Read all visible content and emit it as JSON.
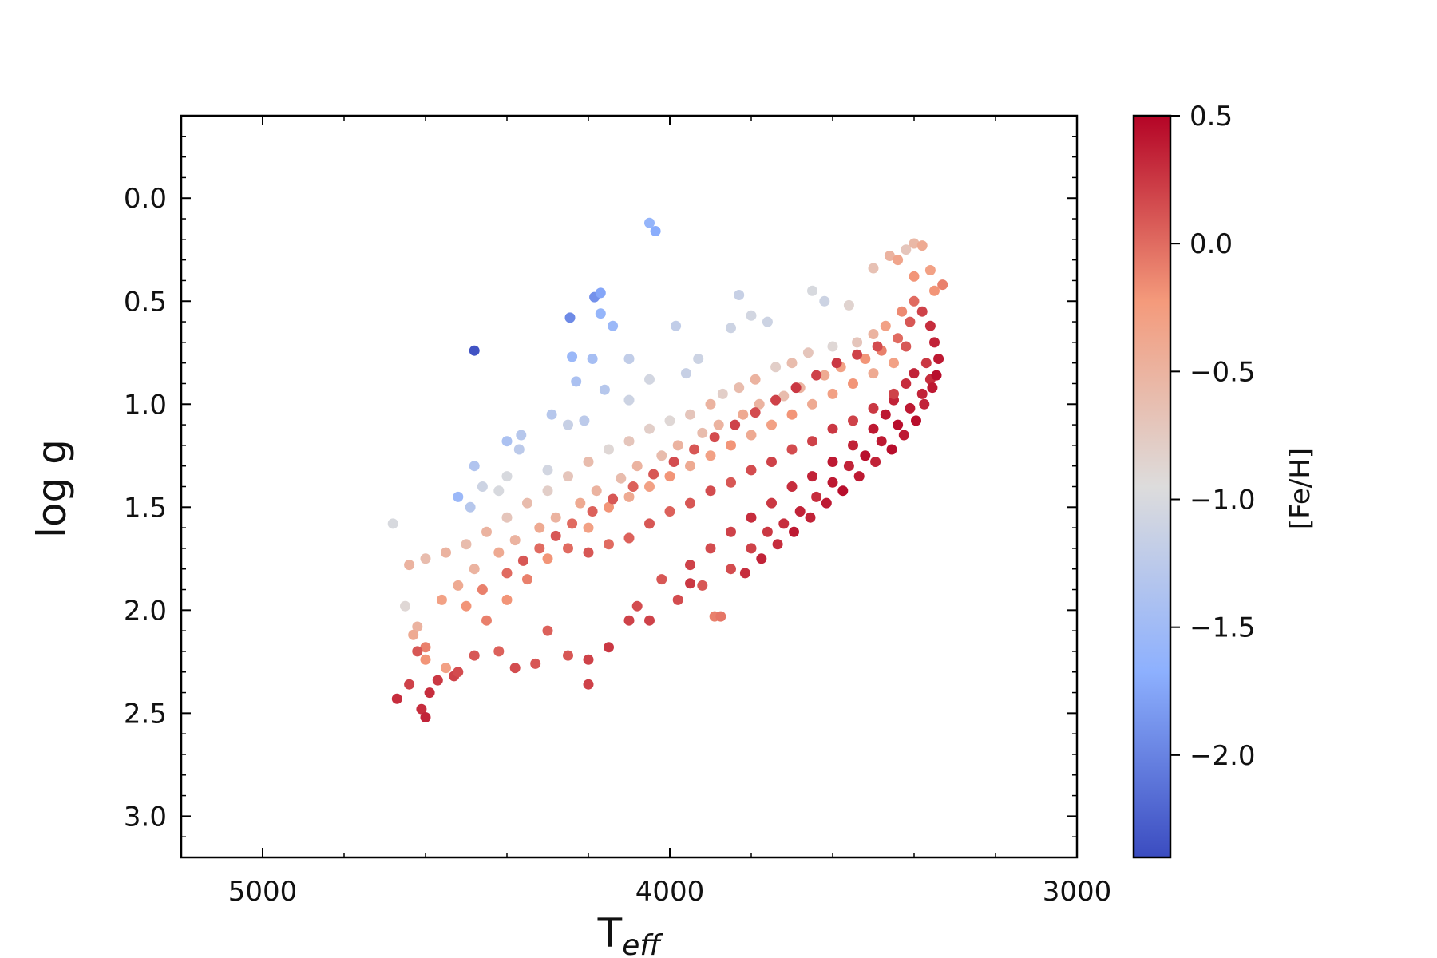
{
  "chart_data": {
    "type": "scatter",
    "title": "",
    "xlabel": "T",
    "xlabel_subscript": "eff",
    "ylabel": "log g",
    "xlim": [
      5200,
      3000
    ],
    "ylim": [
      3.2,
      -0.4
    ],
    "x_reversed": true,
    "y_reversed": true,
    "xticks": [
      5000,
      4000,
      3000
    ],
    "xtick_labels": [
      "5000",
      "4000",
      "3000"
    ],
    "yticks": [
      0.0,
      0.5,
      1.0,
      1.5,
      2.0,
      2.5,
      3.0
    ],
    "ytick_labels": [
      "0.0",
      "0.5",
      "1.0",
      "1.5",
      "2.0",
      "2.5",
      "3.0"
    ],
    "grid": false,
    "colorbar": {
      "label": "[Fe/H]",
      "colormap": "coolwarm",
      "range": [
        -2.4,
        0.5
      ],
      "ticks": [
        0.5,
        0.0,
        -0.5,
        -1.0,
        -1.5,
        -2.0
      ],
      "tick_labels": [
        "0.5",
        "0.0",
        "−0.5",
        "−1.0",
        "−1.5",
        "−2.0"
      ],
      "colors": [
        "#3b4cc0",
        "#8db0fe",
        "#dddcdc",
        "#f49a7b",
        "#b40426"
      ]
    },
    "points": [
      [
        4050,
        0.12,
        -1.6
      ],
      [
        4035,
        0.16,
        -1.7
      ],
      [
        4185,
        0.48,
        -1.9
      ],
      [
        4170,
        0.46,
        -1.75
      ],
      [
        4245,
        0.58,
        -1.95
      ],
      [
        4170,
        0.56,
        -1.6
      ],
      [
        4140,
        0.62,
        -1.55
      ],
      [
        4480,
        0.74,
        -2.35
      ],
      [
        4240,
        0.77,
        -1.55
      ],
      [
        4190,
        0.78,
        -1.45
      ],
      [
        3985,
        0.62,
        -1.2
      ],
      [
        3830,
        0.47,
        -1.15
      ],
      [
        3850,
        0.63,
        -1.1
      ],
      [
        4100,
        0.78,
        -1.2
      ],
      [
        4230,
        0.89,
        -1.4
      ],
      [
        4160,
        0.93,
        -1.3
      ],
      [
        4290,
        1.05,
        -1.3
      ],
      [
        4210,
        1.08,
        -1.25
      ],
      [
        4365,
        1.15,
        -1.3
      ],
      [
        4400,
        1.18,
        -1.4
      ],
      [
        4370,
        1.22,
        -1.25
      ],
      [
        4480,
        1.3,
        -1.35
      ],
      [
        4520,
        1.45,
        -1.55
      ],
      [
        4490,
        1.5,
        -1.3
      ],
      [
        4680,
        1.58,
        -1.0
      ],
      [
        4650,
        1.98,
        -0.9
      ],
      [
        4460,
        1.4,
        -1.1
      ],
      [
        4420,
        1.42,
        -1.0
      ],
      [
        4400,
        1.35,
        -1.0
      ],
      [
        4300,
        1.32,
        -1.05
      ],
      [
        4250,
        1.1,
        -1.15
      ],
      [
        4100,
        0.98,
        -1.1
      ],
      [
        4050,
        0.88,
        -1.05
      ],
      [
        3960,
        0.85,
        -1.15
      ],
      [
        3930,
        0.78,
        -1.1
      ],
      [
        3800,
        0.57,
        -1.05
      ],
      [
        3760,
        0.6,
        -1.1
      ],
      [
        3650,
        0.45,
        -1.0
      ],
      [
        3620,
        0.5,
        -1.1
      ],
      [
        3560,
        0.52,
        -0.85
      ],
      [
        3500,
        0.34,
        -0.65
      ],
      [
        3460,
        0.28,
        -0.5
      ],
      [
        3400,
        0.22,
        -0.55
      ],
      [
        3380,
        0.23,
        -0.4
      ],
      [
        3420,
        0.25,
        -0.7
      ],
      [
        3440,
        0.3,
        -0.35
      ],
      [
        3400,
        0.38,
        -0.2
      ],
      [
        3360,
        0.35,
        -0.3
      ],
      [
        3330,
        0.42,
        -0.1
      ],
      [
        3350,
        0.45,
        -0.2
      ],
      [
        3400,
        0.5,
        0.0
      ],
      [
        3430,
        0.55,
        -0.15
      ],
      [
        3470,
        0.62,
        -0.3
      ],
      [
        3500,
        0.66,
        -0.5
      ],
      [
        3540,
        0.7,
        -0.7
      ],
      [
        3600,
        0.72,
        -0.9
      ],
      [
        3660,
        0.75,
        -0.7
      ],
      [
        3700,
        0.8,
        -0.6
      ],
      [
        3740,
        0.82,
        -0.8
      ],
      [
        3790,
        0.88,
        -0.5
      ],
      [
        3830,
        0.92,
        -0.6
      ],
      [
        3870,
        0.95,
        -0.8
      ],
      [
        3900,
        1.0,
        -0.5
      ],
      [
        3950,
        1.05,
        -0.7
      ],
      [
        4000,
        1.08,
        -0.9
      ],
      [
        4050,
        1.12,
        -0.8
      ],
      [
        4100,
        1.18,
        -0.7
      ],
      [
        4150,
        1.22,
        -0.9
      ],
      [
        4200,
        1.28,
        -0.6
      ],
      [
        4250,
        1.35,
        -0.7
      ],
      [
        4300,
        1.42,
        -0.8
      ],
      [
        4350,
        1.48,
        -0.6
      ],
      [
        4400,
        1.55,
        -0.7
      ],
      [
        4450,
        1.62,
        -0.5
      ],
      [
        4500,
        1.68,
        -0.6
      ],
      [
        4550,
        1.72,
        -0.5
      ],
      [
        4600,
        1.75,
        -0.6
      ],
      [
        4640,
        1.78,
        -0.5
      ],
      [
        4620,
        2.08,
        -0.5
      ],
      [
        4630,
        2.12,
        -0.4
      ],
      [
        4600,
        2.18,
        -0.1
      ],
      [
        4620,
        2.2,
        0.1
      ],
      [
        4600,
        2.24,
        -0.2
      ],
      [
        4550,
        2.28,
        -0.3
      ],
      [
        4530,
        2.32,
        0.2
      ],
      [
        4570,
        2.34,
        0.25
      ],
      [
        4640,
        2.36,
        0.2
      ],
      [
        4670,
        2.43,
        0.3
      ],
      [
        4590,
        2.4,
        0.3
      ],
      [
        4610,
        2.48,
        0.3
      ],
      [
        4600,
        2.52,
        0.35
      ],
      [
        4520,
        2.3,
        0.15
      ],
      [
        4480,
        2.22,
        0.1
      ],
      [
        4420,
        2.2,
        0.05
      ],
      [
        4380,
        2.28,
        0.15
      ],
      [
        4330,
        2.26,
        0.1
      ],
      [
        4300,
        2.1,
        0.05
      ],
      [
        4250,
        2.22,
        0.1
      ],
      [
        4200,
        2.24,
        0.2
      ],
      [
        4150,
        2.18,
        0.25
      ],
      [
        4100,
        2.05,
        0.2
      ],
      [
        4080,
        1.98,
        0.15
      ],
      [
        4020,
        1.85,
        0.1
      ],
      [
        3950,
        1.78,
        0.2
      ],
      [
        3900,
        1.7,
        0.15
      ],
      [
        3850,
        1.62,
        0.2
      ],
      [
        3800,
        1.55,
        0.3
      ],
      [
        3750,
        1.48,
        0.25
      ],
      [
        3700,
        1.4,
        0.3
      ],
      [
        3650,
        1.35,
        0.35
      ],
      [
        3600,
        1.28,
        0.4
      ],
      [
        3550,
        1.2,
        0.35
      ],
      [
        3500,
        1.12,
        0.4
      ],
      [
        3470,
        1.05,
        0.4
      ],
      [
        3450,
        0.98,
        0.35
      ],
      [
        3420,
        0.9,
        0.3
      ],
      [
        3400,
        0.85,
        0.35
      ],
      [
        3370,
        0.8,
        0.25
      ],
      [
        3360,
        0.88,
        0.3
      ],
      [
        3380,
        0.95,
        0.35
      ],
      [
        3410,
        1.02,
        0.4
      ],
      [
        3440,
        1.1,
        0.45
      ],
      [
        3480,
        1.18,
        0.4
      ],
      [
        3520,
        1.25,
        0.45
      ],
      [
        3560,
        1.3,
        0.35
      ],
      [
        3600,
        1.38,
        0.4
      ],
      [
        3640,
        1.45,
        0.3
      ],
      [
        3680,
        1.52,
        0.35
      ],
      [
        3720,
        1.58,
        0.3
      ],
      [
        3760,
        1.62,
        0.25
      ],
      [
        3800,
        1.7,
        0.2
      ],
      [
        3850,
        1.8,
        0.15
      ],
      [
        3920,
        1.88,
        0.1
      ],
      [
        3980,
        1.95,
        0.15
      ],
      [
        3890,
        2.03,
        -0.1
      ],
      [
        3875,
        2.03,
        -0.05
      ],
      [
        4200,
        2.36,
        0.2
      ],
      [
        4050,
        2.05,
        0.2
      ],
      [
        3950,
        1.87,
        0.25
      ],
      [
        4200,
        1.6,
        -0.3
      ],
      [
        4150,
        1.5,
        -0.2
      ],
      [
        4100,
        1.45,
        -0.4
      ],
      [
        4050,
        1.4,
        -0.3
      ],
      [
        4000,
        1.35,
        -0.2
      ],
      [
        3950,
        1.3,
        -0.4
      ],
      [
        3900,
        1.25,
        -0.3
      ],
      [
        3850,
        1.2,
        -0.2
      ],
      [
        3800,
        1.15,
        -0.4
      ],
      [
        3750,
        1.1,
        -0.3
      ],
      [
        3700,
        1.05,
        -0.2
      ],
      [
        3650,
        1.0,
        -0.4
      ],
      [
        3600,
        0.95,
        -0.3
      ],
      [
        3550,
        0.9,
        -0.2
      ],
      [
        3500,
        0.85,
        -0.4
      ],
      [
        3450,
        0.8,
        -0.3
      ],
      [
        4300,
        1.75,
        -0.2
      ],
      [
        4350,
        1.85,
        -0.1
      ],
      [
        4400,
        1.95,
        -0.2
      ],
      [
        4450,
        2.05,
        -0.1
      ],
      [
        4250,
        1.7,
        0.0
      ],
      [
        4200,
        1.72,
        0.1
      ],
      [
        4150,
        1.68,
        0.0
      ],
      [
        4100,
        1.65,
        0.05
      ],
      [
        4050,
        1.58,
        0.1
      ],
      [
        4000,
        1.52,
        0.05
      ],
      [
        3950,
        1.48,
        0.1
      ],
      [
        3900,
        1.42,
        0.15
      ],
      [
        3850,
        1.38,
        0.1
      ],
      [
        3800,
        1.32,
        0.15
      ],
      [
        3750,
        1.28,
        0.2
      ],
      [
        3700,
        1.22,
        0.15
      ],
      [
        3650,
        1.18,
        0.2
      ],
      [
        3600,
        1.12,
        0.25
      ],
      [
        3550,
        1.08,
        0.2
      ],
      [
        3500,
        1.02,
        0.25
      ],
      [
        3450,
        0.95,
        0.2
      ],
      [
        3420,
        0.72,
        0.1
      ],
      [
        3440,
        0.68,
        0.0
      ],
      [
        3480,
        0.74,
        -0.1
      ],
      [
        3520,
        0.78,
        -0.2
      ],
      [
        3580,
        0.82,
        -0.3
      ],
      [
        3620,
        0.86,
        -0.4
      ],
      [
        3680,
        0.92,
        -0.5
      ],
      [
        3720,
        0.96,
        -0.6
      ],
      [
        3780,
        1.0,
        -0.5
      ],
      [
        3820,
        1.05,
        -0.4
      ],
      [
        3880,
        1.1,
        -0.5
      ],
      [
        3920,
        1.14,
        -0.6
      ],
      [
        3980,
        1.2,
        -0.5
      ],
      [
        4020,
        1.25,
        -0.6
      ],
      [
        4080,
        1.3,
        -0.5
      ],
      [
        4120,
        1.36,
        -0.6
      ],
      [
        4180,
        1.42,
        -0.5
      ],
      [
        4220,
        1.48,
        -0.4
      ],
      [
        4280,
        1.55,
        -0.5
      ],
      [
        4320,
        1.6,
        -0.4
      ],
      [
        4380,
        1.66,
        -0.5
      ],
      [
        4420,
        1.72,
        -0.4
      ],
      [
        4480,
        1.8,
        -0.5
      ],
      [
        4520,
        1.88,
        -0.4
      ],
      [
        4560,
        1.95,
        -0.3
      ],
      [
        4500,
        1.98,
        -0.2
      ],
      [
        4460,
        1.9,
        -0.1
      ],
      [
        4400,
        1.82,
        0.0
      ],
      [
        4360,
        1.76,
        0.1
      ],
      [
        4320,
        1.7,
        0.0
      ],
      [
        4280,
        1.64,
        0.1
      ],
      [
        4240,
        1.58,
        0.0
      ],
      [
        4190,
        1.52,
        0.05
      ],
      [
        4140,
        1.46,
        0.1
      ],
      [
        4090,
        1.4,
        0.05
      ],
      [
        4040,
        1.34,
        0.1
      ],
      [
        3990,
        1.28,
        0.15
      ],
      [
        3940,
        1.22,
        0.1
      ],
      [
        3890,
        1.16,
        0.15
      ],
      [
        3840,
        1.1,
        0.2
      ],
      [
        3790,
        1.04,
        0.15
      ],
      [
        3740,
        0.98,
        0.2
      ],
      [
        3690,
        0.92,
        0.25
      ],
      [
        3640,
        0.86,
        0.2
      ],
      [
        3590,
        0.8,
        0.25
      ],
      [
        3540,
        0.76,
        0.2
      ],
      [
        3490,
        0.72,
        0.15
      ],
      [
        3410,
        0.6,
        0.1
      ],
      [
        3380,
        0.55,
        0.2
      ],
      [
        3360,
        0.62,
        0.3
      ],
      [
        3350,
        0.7,
        0.35
      ],
      [
        3340,
        0.78,
        0.4
      ],
      [
        3345,
        0.86,
        0.45
      ],
      [
        3355,
        0.92,
        0.4
      ],
      [
        3375,
        1.0,
        0.35
      ],
      [
        3395,
        1.08,
        0.45
      ],
      [
        3425,
        1.15,
        0.4
      ],
      [
        3455,
        1.22,
        0.45
      ],
      [
        3495,
        1.28,
        0.35
      ],
      [
        3535,
        1.35,
        0.4
      ],
      [
        3575,
        1.42,
        0.45
      ],
      [
        3615,
        1.48,
        0.4
      ],
      [
        3655,
        1.55,
        0.35
      ],
      [
        3695,
        1.62,
        0.4
      ],
      [
        3735,
        1.68,
        0.3
      ],
      [
        3775,
        1.75,
        0.35
      ],
      [
        3815,
        1.82,
        0.3
      ]
    ]
  }
}
